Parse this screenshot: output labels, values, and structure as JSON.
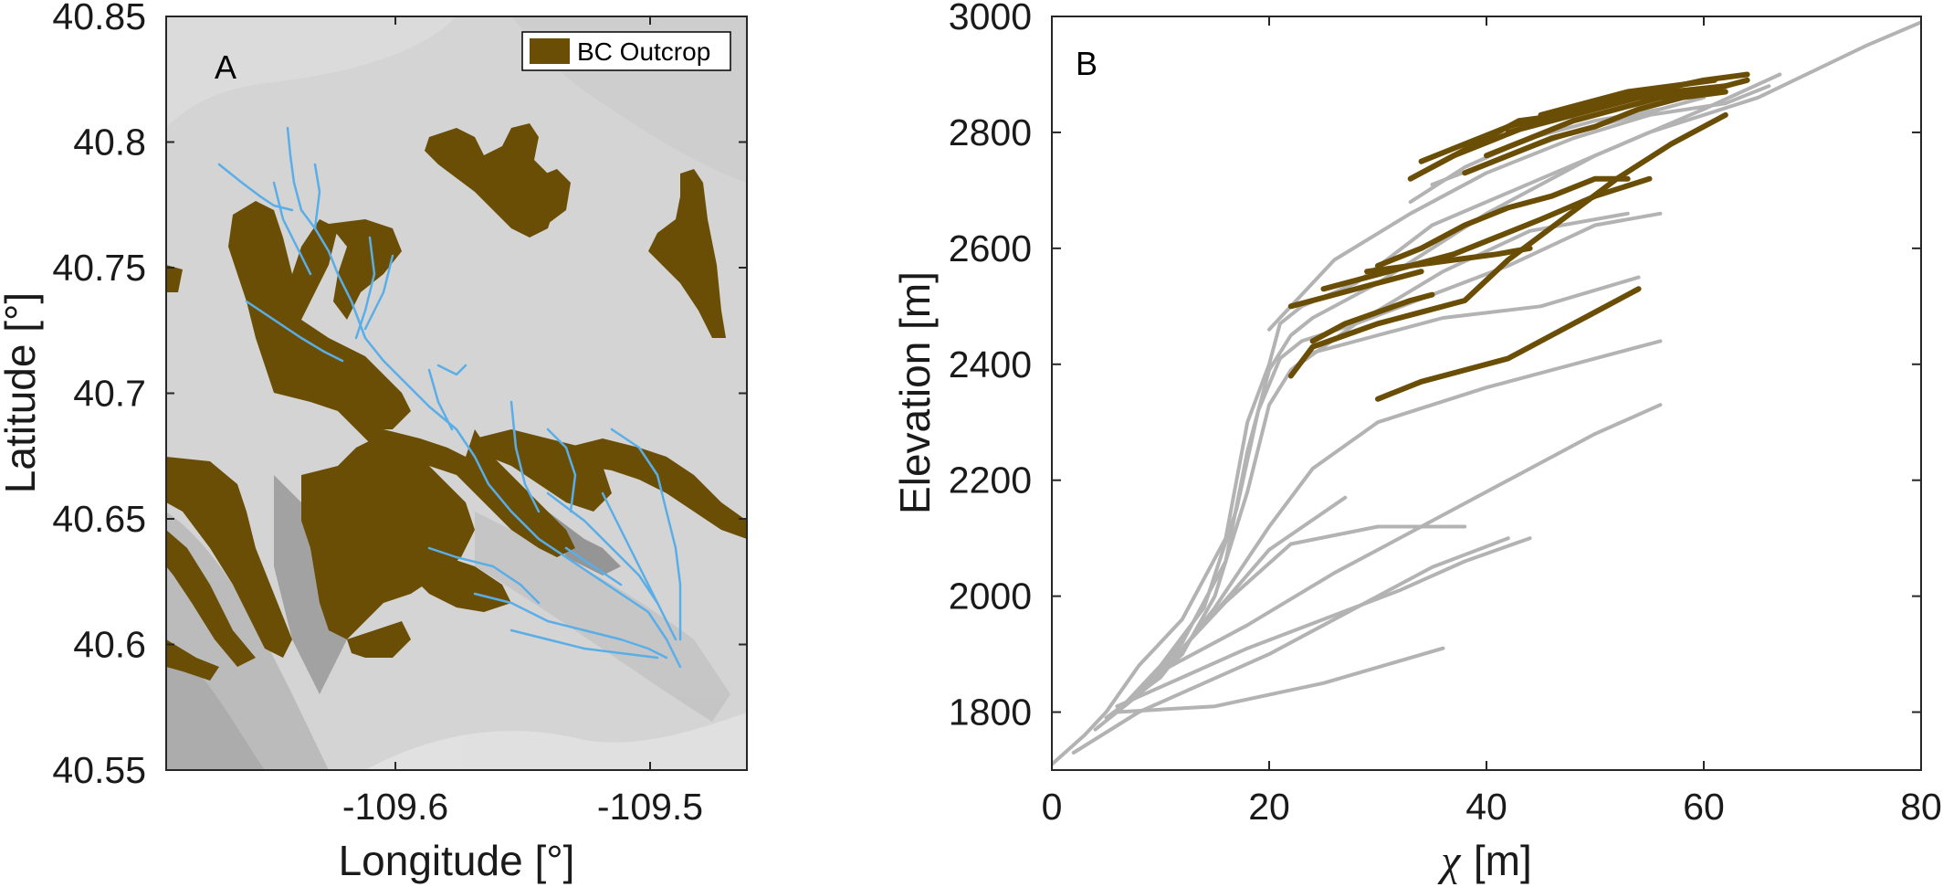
{
  "chart_data": [
    {
      "type": "map",
      "panel_label": "A",
      "xlabel": "Longitude [°]",
      "ylabel": "Latitude [°]",
      "xlim": [
        -109.69,
        -109.462
      ],
      "ylim": [
        40.55,
        40.85
      ],
      "xticks": [
        -109.6,
        -109.5
      ],
      "xtick_labels": [
        "-109.6",
        "-109.5"
      ],
      "yticks": [
        40.55,
        40.6,
        40.65,
        40.7,
        40.75,
        40.8,
        40.85
      ],
      "ytick_labels": [
        "40.55",
        "40.6",
        "40.65",
        "40.7",
        "40.75",
        "40.8",
        "40.85"
      ],
      "legend": {
        "label": "BC Outcrop",
        "position": "top-right"
      },
      "colors": {
        "outcrop": "#6b4e05",
        "stream": "#5aaee8",
        "hillshade": "#d4d4d4"
      }
    },
    {
      "type": "line",
      "panel_label": "B",
      "xlabel_symbol": "χ",
      "xlabel_unit": "[m]",
      "ylabel": "Elevation [m]",
      "xlim": [
        0,
        80
      ],
      "ylim": [
        1700,
        3000
      ],
      "xticks": [
        0,
        20,
        40,
        60,
        80
      ],
      "yticks": [
        1800,
        2000,
        2200,
        2400,
        2600,
        2800,
        3000
      ],
      "colors": {
        "profile": "#b3b3b3",
        "outcrop": "#6b4e05"
      },
      "series": [
        {
          "x": [
            0,
            3,
            5,
            8,
            12,
            16,
            18,
            20,
            21,
            23,
            28,
            35,
            45,
            55,
            65,
            75,
            80
          ],
          "y": [
            1710,
            1760,
            1800,
            1880,
            1960,
            2100,
            2300,
            2400,
            2470,
            2500,
            2540,
            2640,
            2720,
            2800,
            2860,
            2950,
            2990
          ]
        },
        {
          "x": [
            4,
            8,
            12,
            16,
            18,
            20,
            22,
            24,
            30,
            40,
            50,
            60,
            67
          ],
          "y": [
            1770,
            1830,
            1920,
            2060,
            2250,
            2390,
            2450,
            2480,
            2540,
            2660,
            2760,
            2840,
            2900
          ]
        },
        {
          "x": [
            6,
            10,
            14,
            17,
            19,
            21,
            23,
            28,
            35,
            42,
            50,
            56
          ],
          "y": [
            1800,
            1880,
            1980,
            2150,
            2320,
            2410,
            2440,
            2470,
            2520,
            2570,
            2640,
            2660
          ]
        },
        {
          "x": [
            8,
            12,
            15,
            18,
            20,
            22,
            24,
            30,
            36,
            45,
            54
          ],
          "y": [
            1830,
            1900,
            2000,
            2180,
            2330,
            2390,
            2420,
            2450,
            2480,
            2500,
            2550
          ]
        },
        {
          "x": [
            5,
            10,
            15,
            20,
            24,
            30,
            40,
            50,
            56
          ],
          "y": [
            1790,
            1860,
            1980,
            2120,
            2220,
            2300,
            2360,
            2410,
            2440
          ]
        },
        {
          "x": [
            6,
            10,
            16,
            22,
            30,
            38
          ],
          "y": [
            1800,
            1870,
            1990,
            2090,
            2120,
            2120
          ]
        },
        {
          "x": [
            8,
            14,
            20,
            27
          ],
          "y": [
            1830,
            1950,
            2080,
            2170
          ]
        },
        {
          "x": [
            6,
            12,
            18,
            25,
            32,
            38,
            44
          ],
          "y": [
            1810,
            1860,
            1910,
            1960,
            2010,
            2060,
            2100
          ]
        },
        {
          "x": [
            6,
            15,
            25,
            36
          ],
          "y": [
            1800,
            1810,
            1850,
            1910
          ]
        },
        {
          "x": [
            10,
            18,
            26,
            34,
            42,
            50,
            56
          ],
          "y": [
            1870,
            1950,
            2040,
            2120,
            2200,
            2280,
            2330
          ]
        },
        {
          "x": [
            2,
            8,
            14,
            20,
            25,
            30,
            35,
            42
          ],
          "y": [
            1730,
            1800,
            1850,
            1900,
            1950,
            2000,
            2050,
            2100
          ]
        },
        {
          "x": [
            20,
            26,
            33,
            40,
            48,
            55,
            62,
            66
          ],
          "y": [
            2460,
            2580,
            2660,
            2730,
            2790,
            2830,
            2850,
            2880
          ]
        },
        {
          "x": [
            33,
            38,
            44,
            50,
            56
          ],
          "y": [
            2680,
            2740,
            2790,
            2820,
            2840
          ]
        },
        {
          "x": [
            35,
            42,
            48,
            54,
            60
          ],
          "y": [
            2710,
            2760,
            2800,
            2830,
            2860
          ]
        },
        {
          "x": [
            22,
            28,
            36,
            44,
            53
          ],
          "y": [
            2390,
            2470,
            2560,
            2630,
            2660
          ]
        }
      ],
      "outcrop_segments": [
        {
          "x": [
            22,
            24,
            27,
            30,
            34,
            38,
            42,
            47,
            52,
            57,
            62
          ],
          "y": [
            2380,
            2430,
            2450,
            2470,
            2490,
            2510,
            2580,
            2650,
            2720,
            2780,
            2830
          ]
        },
        {
          "x": [
            24,
            27,
            30,
            33,
            35
          ],
          "y": [
            2440,
            2470,
            2490,
            2510,
            2520
          ]
        },
        {
          "x": [
            22,
            26,
            30,
            34
          ],
          "y": [
            2500,
            2520,
            2540,
            2560
          ]
        },
        {
          "x": [
            25,
            29,
            33,
            37,
            41,
            45,
            50,
            55
          ],
          "y": [
            2530,
            2550,
            2570,
            2590,
            2620,
            2650,
            2690,
            2720
          ]
        },
        {
          "x": [
            29,
            33,
            37,
            41,
            44
          ],
          "y": [
            2560,
            2570,
            2580,
            2590,
            2600
          ]
        },
        {
          "x": [
            30,
            34,
            38,
            42,
            46,
            50,
            53
          ],
          "y": [
            2570,
            2600,
            2640,
            2670,
            2690,
            2720,
            2720
          ]
        },
        {
          "x": [
            30,
            34,
            38,
            42,
            46,
            50,
            54
          ],
          "y": [
            2340,
            2370,
            2390,
            2410,
            2450,
            2490,
            2530
          ]
        },
        {
          "x": [
            34,
            38,
            42,
            46,
            50,
            55,
            60,
            64
          ],
          "y": [
            2750,
            2780,
            2810,
            2830,
            2850,
            2870,
            2890,
            2900
          ]
        },
        {
          "x": [
            33,
            37,
            41,
            45,
            49,
            53,
            57,
            62
          ],
          "y": [
            2720,
            2760,
            2790,
            2820,
            2840,
            2860,
            2870,
            2880
          ]
        },
        {
          "x": [
            40,
            44,
            48,
            52,
            56,
            60,
            64
          ],
          "y": [
            2760,
            2790,
            2820,
            2840,
            2860,
            2870,
            2890
          ]
        },
        {
          "x": [
            42,
            46,
            50,
            54,
            58,
            62
          ],
          "y": [
            2800,
            2820,
            2840,
            2860,
            2870,
            2880
          ]
        },
        {
          "x": [
            45,
            49,
            53,
            57,
            61
          ],
          "y": [
            2830,
            2850,
            2870,
            2880,
            2890
          ]
        },
        {
          "x": [
            35,
            39,
            43,
            47,
            51,
            55
          ],
          "y": [
            2740,
            2780,
            2820,
            2830,
            2850,
            2870
          ]
        },
        {
          "x": [
            38,
            42,
            46,
            50,
            54,
            58,
            62
          ],
          "y": [
            2730,
            2760,
            2790,
            2810,
            2840,
            2860,
            2870
          ]
        }
      ]
    }
  ]
}
